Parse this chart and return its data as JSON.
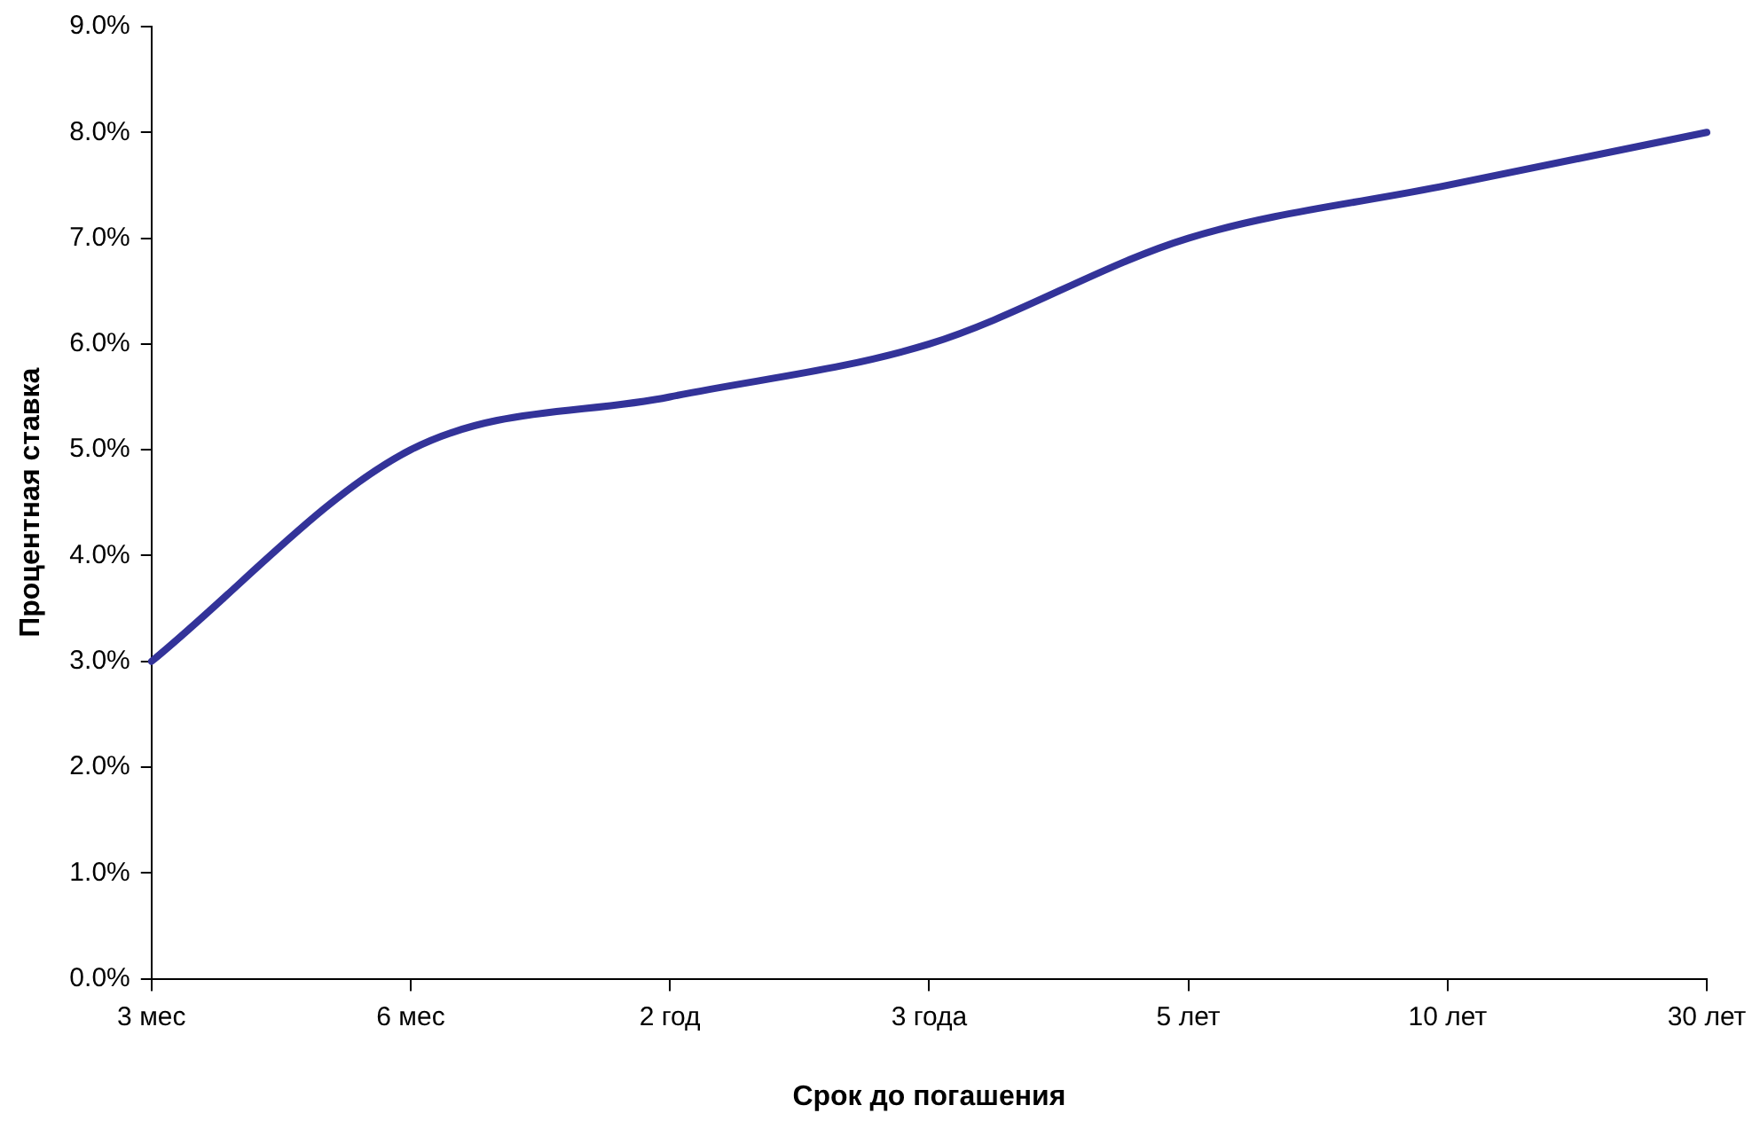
{
  "chart_data": {
    "type": "line",
    "xlabel": "Срок до погашения",
    "ylabel": "Процентная ставка",
    "categories": [
      "3 мес",
      "6 мес",
      "2 год",
      "3 года",
      "5 лет",
      "10 лет",
      "30 лет"
    ],
    "values": [
      3.0,
      5.0,
      5.5,
      6.0,
      7.0,
      7.5,
      8.0
    ],
    "color": "#333399",
    "ylim": [
      0,
      9
    ],
    "yticks": [
      {
        "value": 0,
        "label": "0.0%"
      },
      {
        "value": 1,
        "label": "1.0%"
      },
      {
        "value": 2,
        "label": "2.0%"
      },
      {
        "value": 3,
        "label": "3.0%"
      },
      {
        "value": 4,
        "label": "4.0%"
      },
      {
        "value": 5,
        "label": "5.0%"
      },
      {
        "value": 6,
        "label": "6.0%"
      },
      {
        "value": 7,
        "label": "7.0%"
      },
      {
        "value": 8,
        "label": "8.0%"
      },
      {
        "value": 9,
        "label": "9.0%"
      }
    ],
    "grid": false,
    "legend": false,
    "marker": "none"
  }
}
